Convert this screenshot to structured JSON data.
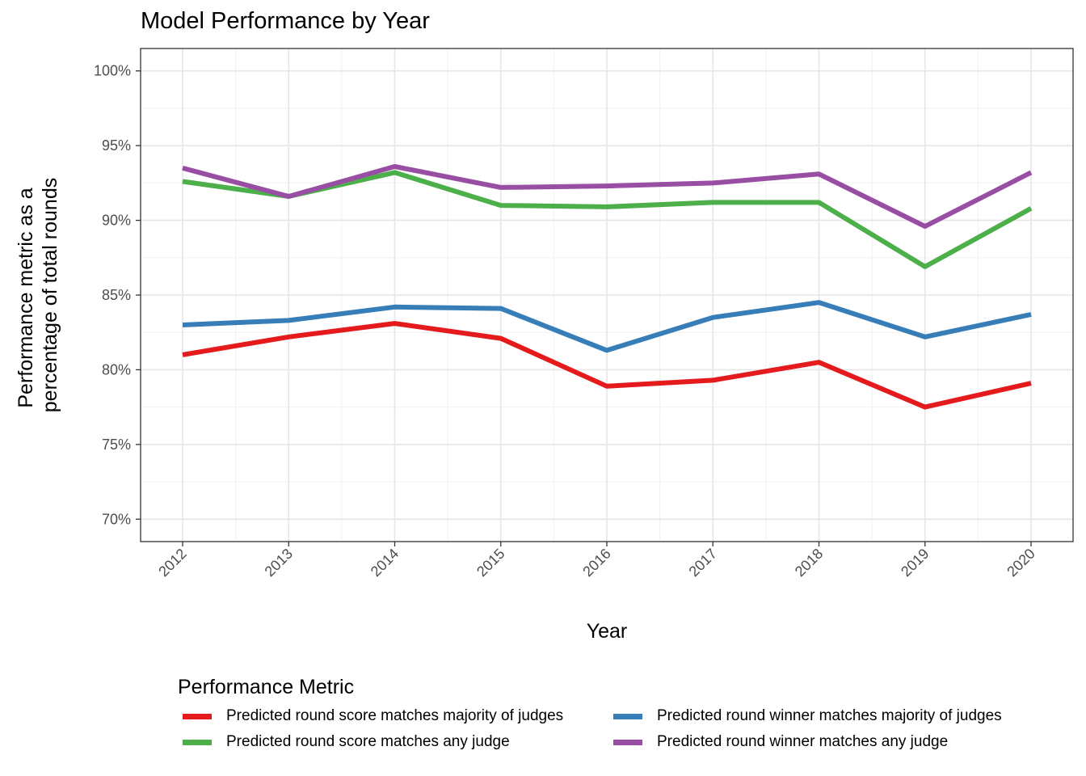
{
  "chart_data": {
    "type": "line",
    "title": "Model Performance by Year",
    "xlabel": "Year",
    "ylabel": [
      "Performance metric as a",
      "percentage of total rounds"
    ],
    "x": [
      "2012",
      "2013",
      "2014",
      "2015",
      "2016",
      "2017",
      "2018",
      "2019",
      "2020"
    ],
    "yticks": [
      "70%",
      "75%",
      "80%",
      "85%",
      "90%",
      "95%",
      "100%"
    ],
    "ytick_values": [
      70,
      75,
      80,
      85,
      90,
      95,
      100
    ],
    "ylim": [
      68.5,
      101.5
    ],
    "grid": true,
    "legend_title": "Performance Metric",
    "legend_position": "bottom",
    "series": [
      {
        "name": "Predicted round score matches majority of judges",
        "color": "#E41A1C",
        "values": [
          81.0,
          82.2,
          83.1,
          82.1,
          78.9,
          79.3,
          80.5,
          77.5,
          79.1
        ]
      },
      {
        "name": "Predicted round score matches any judge",
        "color": "#4DAF4A",
        "values": [
          92.6,
          91.6,
          93.2,
          91.0,
          90.9,
          91.2,
          91.2,
          86.9,
          90.8
        ]
      },
      {
        "name": "Predicted round winner matches majority of judges",
        "color": "#377EB8",
        "values": [
          83.0,
          83.3,
          84.2,
          84.1,
          81.3,
          83.5,
          84.5,
          82.2,
          83.7
        ]
      },
      {
        "name": "Predicted round winner matches any judge",
        "color": "#984EA3",
        "values": [
          93.5,
          91.6,
          93.6,
          92.2,
          92.3,
          92.5,
          93.1,
          89.6,
          93.2
        ]
      }
    ]
  }
}
